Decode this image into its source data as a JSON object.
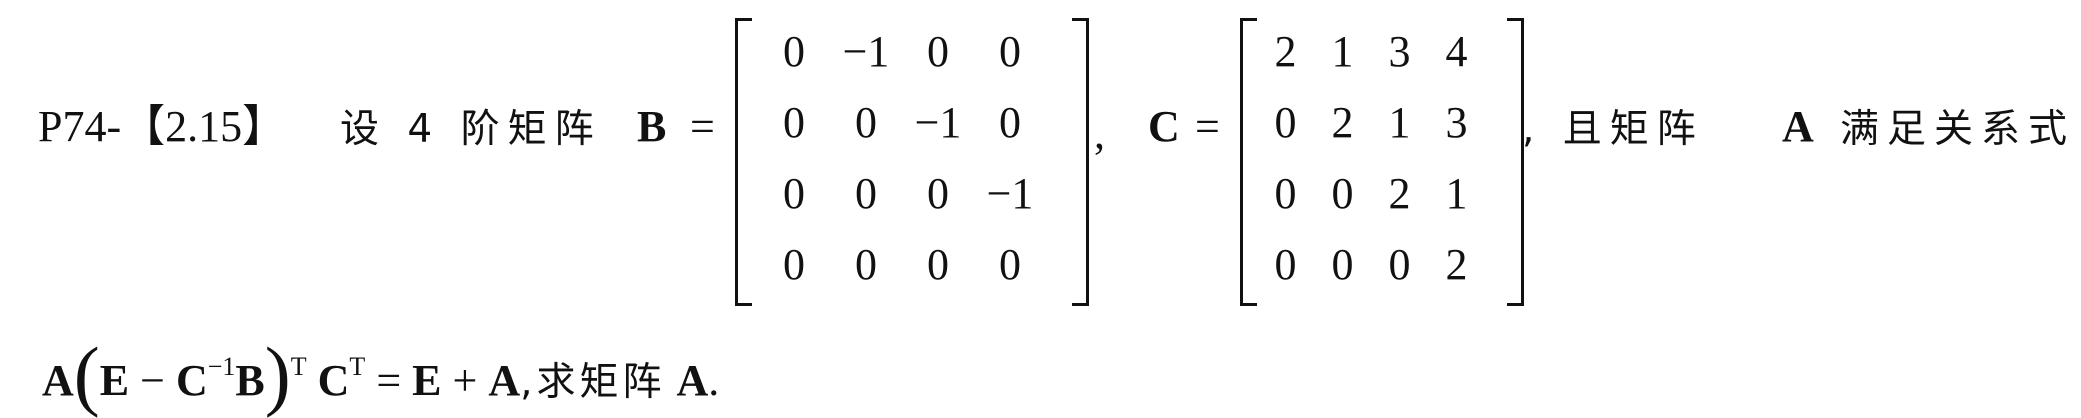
{
  "problem": {
    "label": "P74-【2.15】",
    "intro": "设 4 阶矩阵",
    "B_sym": "B",
    "eq": "=",
    "comma": ",",
    "C_sym": "C",
    "after": ", 且矩阵",
    "A_sym": "A",
    "after2": "满足关系式"
  },
  "matrix_B": {
    "rows": [
      [
        "0",
        "−1",
        "0",
        "0"
      ],
      [
        "0",
        "0",
        "−1",
        "0"
      ],
      [
        "0",
        "0",
        "0",
        "−1"
      ],
      [
        "0",
        "0",
        "0",
        "0"
      ]
    ]
  },
  "matrix_C": {
    "rows": [
      [
        "2",
        "1",
        "3",
        "4"
      ],
      [
        "0",
        "2",
        "1",
        "3"
      ],
      [
        "0",
        "0",
        "2",
        "1"
      ],
      [
        "0",
        "0",
        "0",
        "2"
      ]
    ]
  },
  "equation": {
    "A": "A",
    "lparen": "(",
    "E": "E",
    "minus": "−",
    "C": "C",
    "inv": "−1",
    "B": "B",
    "rparen": ")",
    "T": "T",
    "C2": "C",
    "T2": "T",
    "eq": "=",
    "E2": "E",
    "plus": "+",
    "A2": "A",
    "tail": ",求矩阵",
    "A3": "A",
    "period": "."
  }
}
